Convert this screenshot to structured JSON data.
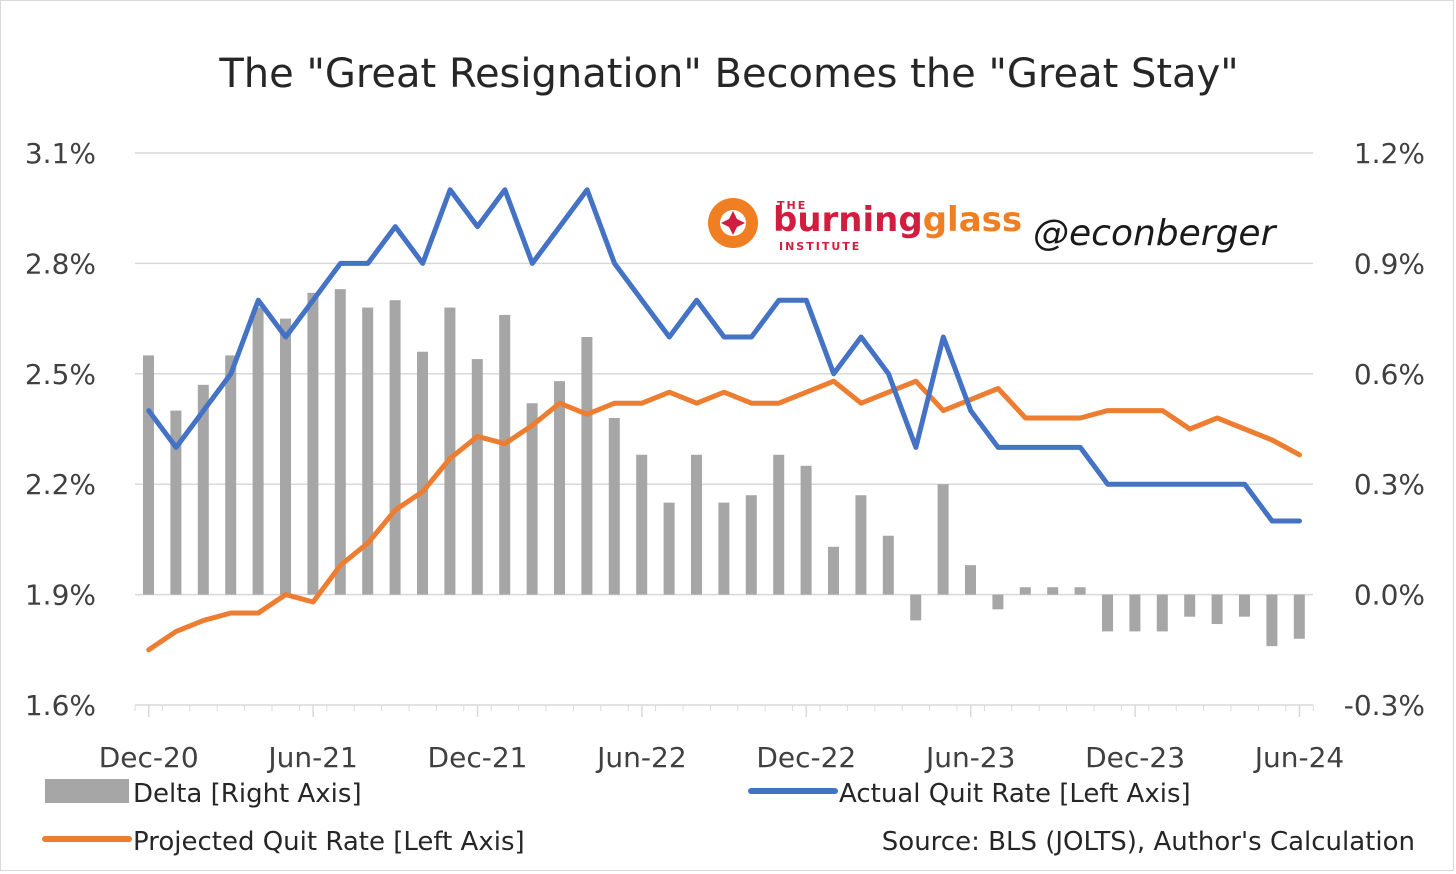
{
  "chart_data": {
    "type": "bar+line",
    "title": "The \"Great Resignation\" Becomes the \"Great Stay\"",
    "x": [
      "Dec-20",
      "Jan-21",
      "Feb-21",
      "Mar-21",
      "Apr-21",
      "May-21",
      "Jun-21",
      "Jul-21",
      "Aug-21",
      "Sep-21",
      "Oct-21",
      "Nov-21",
      "Dec-21",
      "Jan-22",
      "Feb-22",
      "Mar-22",
      "Apr-22",
      "May-22",
      "Jun-22",
      "Jul-22",
      "Aug-22",
      "Sep-22",
      "Oct-22",
      "Nov-22",
      "Dec-22",
      "Jan-23",
      "Feb-23",
      "Mar-23",
      "Apr-23",
      "May-23",
      "Jun-23",
      "Jul-23",
      "Aug-23",
      "Sep-23",
      "Oct-23",
      "Nov-23",
      "Dec-23",
      "Jan-24",
      "Feb-24",
      "Mar-24",
      "Apr-24",
      "May-24",
      "Jun-24"
    ],
    "x_tick_labels": [
      "Dec-20",
      "Jun-21",
      "Dec-21",
      "Jun-22",
      "Dec-22",
      "Jun-23",
      "Dec-23",
      "Jun-24"
    ],
    "left_axis": {
      "ylim": [
        0.016,
        0.031
      ],
      "ticks": [
        "3.1%",
        "2.8%",
        "2.5%",
        "2.2%",
        "1.9%",
        "1.6%"
      ]
    },
    "right_axis": {
      "ylim": [
        -0.003,
        0.012
      ],
      "ticks": [
        "1.2%",
        "0.9%",
        "0.6%",
        "0.3%",
        "0.0%",
        "-0.3%"
      ]
    },
    "series": [
      {
        "name": "Delta [Right Axis]",
        "type": "bar",
        "axis": "right",
        "color": "#a6a6a6",
        "values": [
          0.0065,
          0.005,
          0.0057,
          0.0065,
          0.0078,
          0.0075,
          0.0082,
          0.0083,
          0.0078,
          0.008,
          0.0066,
          0.0078,
          0.0064,
          0.0076,
          0.0052,
          0.0058,
          0.007,
          0.0048,
          0.0038,
          0.0025,
          0.0038,
          0.0025,
          0.0027,
          0.0038,
          0.0035,
          0.0013,
          0.0027,
          0.0016,
          -0.0007,
          0.003,
          0.0008,
          -0.0004,
          0.0002,
          0.0002,
          0.0002,
          -0.001,
          -0.001,
          -0.001,
          -0.0006,
          -0.0008,
          -0.0006,
          -0.0014,
          -0.0012
        ]
      },
      {
        "name": "Actual Quit Rate [Left Axis]",
        "type": "line",
        "axis": "left",
        "color": "#4472c4",
        "values": [
          0.024,
          0.023,
          0.024,
          0.025,
          0.027,
          0.026,
          0.027,
          0.028,
          0.028,
          0.029,
          0.028,
          0.03,
          0.029,
          0.03,
          0.028,
          0.029,
          0.03,
          0.028,
          0.027,
          0.026,
          0.027,
          0.026,
          0.026,
          0.027,
          0.027,
          0.025,
          0.026,
          0.025,
          0.023,
          0.026,
          0.024,
          0.023,
          0.023,
          0.023,
          0.023,
          0.022,
          0.022,
          0.022,
          0.022,
          0.022,
          0.022,
          0.021,
          0.021
        ]
      },
      {
        "name": "Projected Quit Rate [Left Axis]",
        "type": "line",
        "axis": "left",
        "color": "#ed7d31",
        "values": [
          0.0175,
          0.018,
          0.0183,
          0.0185,
          0.0185,
          0.019,
          0.0188,
          0.0198,
          0.0204,
          0.0213,
          0.0218,
          0.0227,
          0.0233,
          0.0231,
          0.0236,
          0.0242,
          0.0239,
          0.0242,
          0.0242,
          0.0245,
          0.0242,
          0.0245,
          0.0242,
          0.0242,
          0.0245,
          0.0248,
          0.0242,
          0.0245,
          0.0248,
          0.024,
          0.0243,
          0.0246,
          0.0238,
          0.0238,
          0.0238,
          0.024,
          0.024,
          0.024,
          0.0235,
          0.0238,
          0.0235,
          0.0232,
          0.0228
        ]
      }
    ],
    "source": "Source: BLS (JOLTS), Author's Calculation"
  },
  "branding": {
    "logo_top": "THE",
    "logo_part1": "burning",
    "logo_part2": "glass",
    "logo_bottom": "INSTITUTE",
    "handle": "@econberger"
  },
  "colors": {
    "grid": "#d9d9d9",
    "logo_red": "#d11d3f",
    "logo_orange": "#f07f23"
  }
}
